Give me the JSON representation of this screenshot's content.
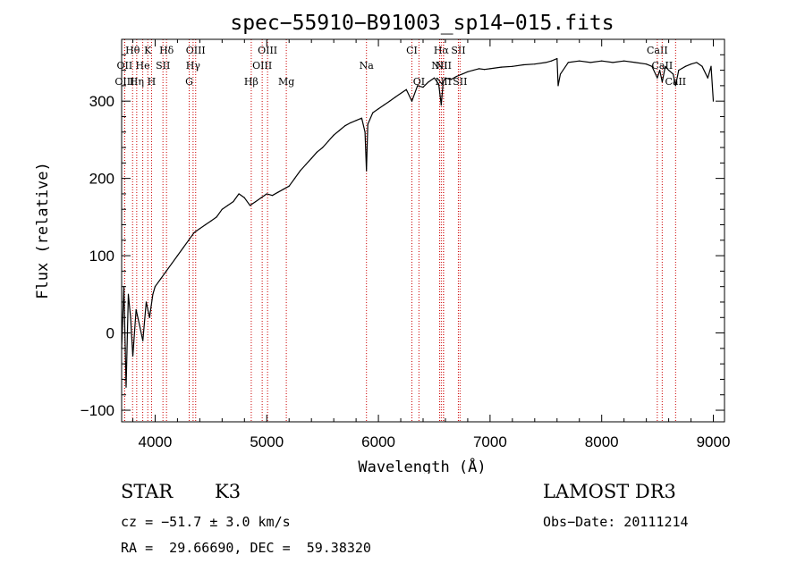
{
  "chart_data": {
    "type": "line",
    "title": "spec−55910−B91003_sp14−015.fits",
    "xlabel": "Wavelength (Å)",
    "ylabel": "Flux (relative)",
    "xlim": [
      3700,
      9100
    ],
    "ylim": [
      -115,
      380
    ],
    "xticks": [
      4000,
      5000,
      6000,
      7000,
      8000,
      9000
    ],
    "yticks": [
      -100,
      0,
      100,
      200,
      300
    ],
    "ytick_labels": [
      "−100",
      "0",
      "100",
      "200",
      "300"
    ],
    "series": [
      {
        "name": "flux",
        "x": [
          3700,
          3720,
          3740,
          3760,
          3780,
          3800,
          3830,
          3860,
          3890,
          3920,
          3950,
          3980,
          4000,
          4050,
          4100,
          4150,
          4200,
          4250,
          4300,
          4350,
          4400,
          4450,
          4500,
          4550,
          4600,
          4650,
          4700,
          4750,
          4800,
          4850,
          4900,
          4950,
          5000,
          5050,
          5100,
          5150,
          5200,
          5250,
          5300,
          5350,
          5400,
          5450,
          5500,
          5550,
          5600,
          5650,
          5700,
          5750,
          5800,
          5850,
          5880,
          5893,
          5905,
          5950,
          6000,
          6050,
          6100,
          6150,
          6200,
          6250,
          6300,
          6350,
          6400,
          6450,
          6500,
          6540,
          6563,
          6580,
          6600,
          6650,
          6700,
          6750,
          6800,
          6850,
          6900,
          6950,
          7000,
          7100,
          7200,
          7300,
          7400,
          7500,
          7550,
          7600,
          7610,
          7630,
          7700,
          7800,
          7900,
          8000,
          8100,
          8200,
          8300,
          8400,
          8450,
          8498,
          8520,
          8542,
          8570,
          8600,
          8640,
          8662,
          8690,
          8750,
          8800,
          8850,
          8900,
          8950,
          8980,
          9000
        ],
        "y": [
          -20,
          60,
          -70,
          50,
          20,
          -30,
          30,
          10,
          -10,
          40,
          20,
          50,
          60,
          70,
          80,
          90,
          100,
          110,
          120,
          130,
          135,
          140,
          145,
          150,
          160,
          165,
          170,
          180,
          175,
          165,
          170,
          175,
          180,
          178,
          182,
          186,
          190,
          200,
          210,
          218,
          226,
          234,
          240,
          248,
          256,
          262,
          268,
          272,
          275,
          278,
          260,
          210,
          270,
          285,
          290,
          295,
          300,
          305,
          310,
          315,
          300,
          320,
          318,
          325,
          330,
          322,
          295,
          325,
          330,
          328,
          332,
          335,
          338,
          340,
          342,
          341,
          342,
          344,
          345,
          347,
          348,
          350,
          352,
          355,
          320,
          335,
          350,
          352,
          350,
          352,
          350,
          352,
          350,
          348,
          345,
          330,
          340,
          325,
          345,
          340,
          335,
          320,
          340,
          345,
          348,
          350,
          345,
          330,
          345,
          300
        ]
      }
    ],
    "spectral_lines": [
      {
        "label": "Hθ",
        "wavelength": 3798,
        "row": 1
      },
      {
        "label": "K",
        "wavelength": 3934,
        "row": 1
      },
      {
        "label": "Hδ",
        "wavelength": 4102,
        "row": 1
      },
      {
        "label": "OIII",
        "wavelength": 4363,
        "row": 1
      },
      {
        "label": "OIII",
        "wavelength": 5007,
        "row": 1
      },
      {
        "label": "CI",
        "wavelength": 6300,
        "row": 1
      },
      {
        "label": "Hα",
        "wavelength": 6563,
        "row": 1
      },
      {
        "label": "SII",
        "wavelength": 6716,
        "row": 1
      },
      {
        "label": "CaII",
        "wavelength": 8498,
        "row": 1
      },
      {
        "label": "OII",
        "wavelength": 3727,
        "row": 2
      },
      {
        "label": "He",
        "wavelength": 3889,
        "row": 2
      },
      {
        "label": "SII",
        "wavelength": 4070,
        "row": 2
      },
      {
        "label": "Hγ",
        "wavelength": 4340,
        "row": 2
      },
      {
        "label": "OIII",
        "wavelength": 4959,
        "row": 2
      },
      {
        "label": "Na",
        "wavelength": 5893,
        "row": 2
      },
      {
        "label": "NII",
        "wavelength": 6548,
        "row": 2
      },
      {
        "label": "NII",
        "wavelength": 6583,
        "row": 2
      },
      {
        "label": "CaII",
        "wavelength": 8542,
        "row": 2
      },
      {
        "label": "OIII",
        "wavelength": 3727,
        "row": 3
      },
      {
        "label": "Hη",
        "wavelength": 3835,
        "row": 3
      },
      {
        "label": "H",
        "wavelength": 3968,
        "row": 3
      },
      {
        "label": "G",
        "wavelength": 4305,
        "row": 3
      },
      {
        "label": "Hβ",
        "wavelength": 4861,
        "row": 3
      },
      {
        "label": "Mg",
        "wavelength": 5175,
        "row": 3
      },
      {
        "label": "OI",
        "wavelength": 6363,
        "row": 3
      },
      {
        "label": "NII",
        "wavelength": 6583,
        "row": 3
      },
      {
        "label": "SII",
        "wavelength": 6731,
        "row": 3
      },
      {
        "label": "CaII",
        "wavelength": 8662,
        "row": 3
      }
    ],
    "line_color": "#cc0000"
  },
  "info": {
    "object_class": "STAR",
    "subclass": "K3",
    "survey": "LAMOST DR3",
    "velocity": "cz = −51.7 ± 3.0 km/s",
    "obs_date": "Obs−Date: 20111214",
    "coords": "RA =  29.66690, DEC =  59.38320"
  }
}
